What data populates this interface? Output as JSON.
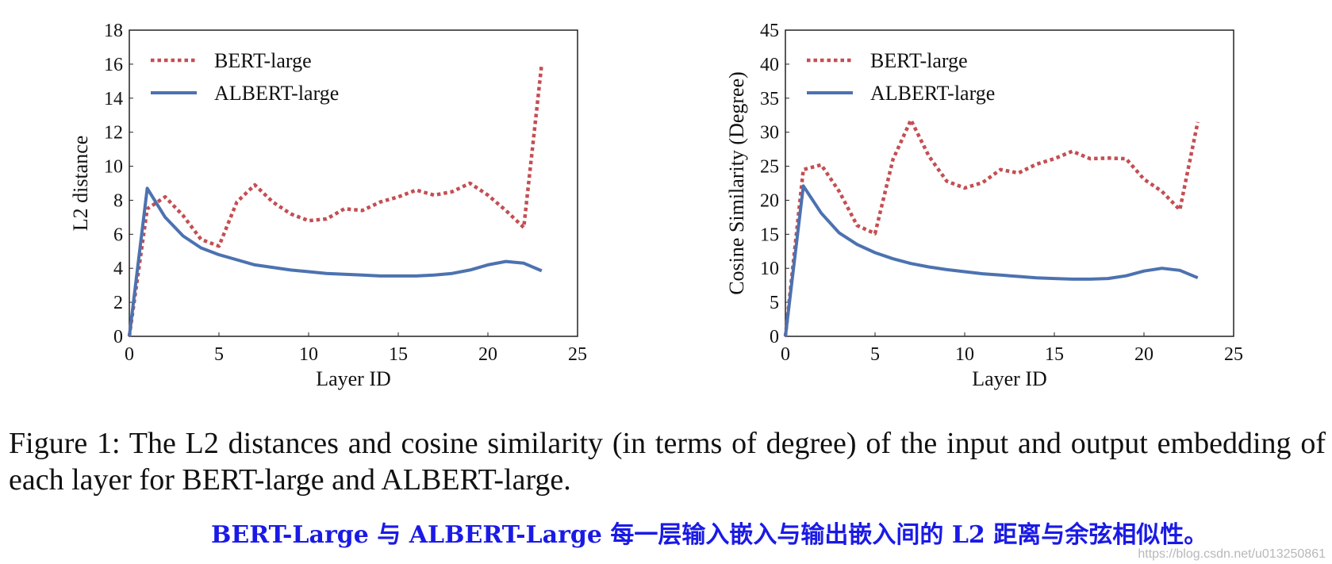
{
  "chart_data": [
    {
      "type": "line",
      "xlabel": "Layer ID",
      "ylabel": "L2 distance",
      "xlim": [
        0,
        25
      ],
      "ylim": [
        0,
        18
      ],
      "xticks": [
        0,
        5,
        10,
        15,
        20,
        25
      ],
      "yticks": [
        0,
        2,
        4,
        6,
        8,
        10,
        12,
        14,
        16,
        18
      ],
      "legend_position": "top-left",
      "x": [
        0,
        1,
        2,
        3,
        4,
        5,
        6,
        7,
        8,
        9,
        10,
        11,
        12,
        13,
        14,
        15,
        16,
        17,
        18,
        19,
        20,
        21,
        22,
        23
      ],
      "series": [
        {
          "name": "BERT-large",
          "style": "dotted",
          "color": "#c44e52",
          "values": [
            0,
            7.5,
            8.2,
            7.1,
            5.7,
            5.3,
            7.9,
            8.9,
            7.9,
            7.2,
            6.8,
            6.9,
            7.5,
            7.4,
            7.9,
            8.2,
            8.6,
            8.3,
            8.5,
            9.0,
            8.3,
            7.4,
            6.4,
            16.0
          ]
        },
        {
          "name": "ALBERT-large",
          "style": "solid",
          "color": "#4c72b0",
          "values": [
            0,
            8.7,
            7.0,
            5.9,
            5.2,
            4.8,
            4.5,
            4.2,
            4.05,
            3.9,
            3.8,
            3.7,
            3.65,
            3.6,
            3.55,
            3.55,
            3.55,
            3.6,
            3.7,
            3.9,
            4.2,
            4.4,
            4.3,
            3.85
          ]
        }
      ]
    },
    {
      "type": "line",
      "xlabel": "Layer ID",
      "ylabel": "Cosine Similarity (Degree)",
      "xlim": [
        0,
        25
      ],
      "ylim": [
        0,
        45
      ],
      "xticks": [
        0,
        5,
        10,
        15,
        20,
        25
      ],
      "yticks": [
        0,
        5,
        10,
        15,
        20,
        25,
        30,
        35,
        40,
        45
      ],
      "legend_position": "top-left",
      "x": [
        0,
        1,
        2,
        3,
        4,
        5,
        6,
        7,
        8,
        9,
        10,
        11,
        12,
        13,
        14,
        15,
        16,
        17,
        18,
        19,
        20,
        21,
        22,
        23
      ],
      "series": [
        {
          "name": "BERT-large",
          "style": "dotted",
          "color": "#c44e52",
          "values": [
            0,
            24.5,
            25.2,
            21.3,
            16.3,
            15.1,
            26.0,
            31.8,
            26.5,
            22.8,
            21.8,
            22.6,
            24.5,
            24.0,
            25.3,
            26.1,
            27.2,
            26.1,
            26.2,
            26.1,
            23.1,
            21.3,
            18.6,
            31.5
          ]
        },
        {
          "name": "ALBERT-large",
          "style": "solid",
          "color": "#4c72b0",
          "values": [
            0,
            22.1,
            18.1,
            15.2,
            13.5,
            12.3,
            11.4,
            10.7,
            10.2,
            9.8,
            9.5,
            9.2,
            9.0,
            8.8,
            8.6,
            8.5,
            8.4,
            8.4,
            8.5,
            8.9,
            9.6,
            10.0,
            9.7,
            8.6
          ]
        }
      ]
    }
  ],
  "caption": "Figure 1: The L2 distances and cosine similarity (in terms of degree) of the input and output embedding of each layer for BERT-large and ALBERT-large.",
  "translation": "BERT-Large 与 ALBERT-Large 每一层输入嵌入与输出嵌入间的 L2 距离与余弦相似性。",
  "watermark": "https://blog.csdn.net/u013250861"
}
